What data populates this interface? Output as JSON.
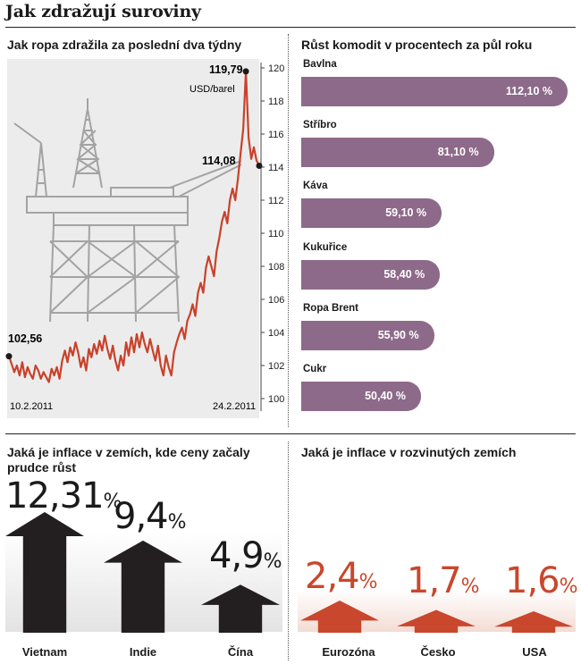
{
  "main_title": "Jak zdražují suroviny",
  "colors": {
    "bar_purple": "#8d6a89",
    "price_line": "#c8422b",
    "arrow_dark": "#231f20",
    "arrow_orange": "#c9472c",
    "chart_bg": "#ececec"
  },
  "oil_chart": {
    "title": "Jak ropa zdražila za poslední dva týdny",
    "unit": "USD/barel",
    "start_label": "102,56",
    "peak_label": "119,79",
    "end_label": "114,08",
    "x_start": "10.2.2011",
    "x_end": "24.2.2011",
    "y_ticks": [
      "100",
      "102",
      "104",
      "106",
      "108",
      "110",
      "112",
      "114",
      "116",
      "118",
      "120"
    ],
    "background_icon": "oil-platform-icon"
  },
  "commodities": {
    "title": "Růst komodit v procentech za půl roku",
    "items": [
      {
        "name": "Bavlna",
        "value_label": "112,10 %"
      },
      {
        "name": "Stříbro",
        "value_label": "81,10 %"
      },
      {
        "name": "Káva",
        "value_label": "59,10 %"
      },
      {
        "name": "Kukuřice",
        "value_label": "58,40 %"
      },
      {
        "name": "Ropa Brent",
        "value_label": "55,90 %"
      },
      {
        "name": "Cukr",
        "value_label": "50,40 %"
      }
    ]
  },
  "inflation_emerging": {
    "title": "Jaká je inflace v zemích, kde ceny začaly prudce růst",
    "items": [
      {
        "country": "Vietnam",
        "number": "12,31",
        "pct": "%"
      },
      {
        "country": "Indie",
        "number": "9,4",
        "pct": "%"
      },
      {
        "country": "Čína",
        "number": "4,9",
        "pct": "%"
      }
    ]
  },
  "inflation_developed": {
    "title": "Jaká je inflace v rozvinutých zemích",
    "items": [
      {
        "country": "Eurozóna",
        "number": "2,4",
        "pct": "%"
      },
      {
        "country": "Česko",
        "number": "1,7",
        "pct": "%"
      },
      {
        "country": "USA",
        "number": "1,6",
        "pct": "%"
      }
    ]
  },
  "chart_data": [
    {
      "type": "line",
      "title": "Jak ropa zdražila za poslední dva týdny",
      "ylabel": "USD/barel",
      "x_range": [
        "10.2.2011",
        "24.2.2011"
      ],
      "ylim": [
        100,
        120
      ],
      "grid": false,
      "annotations": [
        {
          "label": "102,56",
          "value": 102.56,
          "at": "start"
        },
        {
          "label": "119,79",
          "value": 119.79,
          "at": "peak"
        },
        {
          "label": "114,08",
          "value": 114.08,
          "at": "end"
        }
      ],
      "series": [
        {
          "values": [
            102.56,
            102.1,
            101.6,
            102.0,
            101.4,
            102.2,
            101.3,
            101.9,
            101.5,
            101.2,
            102.0,
            101.7,
            101.2,
            101.6,
            101.3,
            101.0,
            101.8,
            101.4,
            101.9,
            101.2,
            102.3,
            102.9,
            102.2,
            103.1,
            102.6,
            103.4,
            102.8,
            101.9,
            102.5,
            101.7,
            103.0,
            102.5,
            103.3,
            102.7,
            103.5,
            102.9,
            103.8,
            103.0,
            102.4,
            103.2,
            102.3,
            101.7,
            102.6,
            102.0,
            103.4,
            102.6,
            103.7,
            102.8,
            103.9,
            103.1,
            104.0,
            103.3,
            102.8,
            103.6,
            102.9,
            102.3,
            103.2,
            102.0,
            101.4,
            102.6,
            101.9,
            101.4,
            102.8,
            103.4,
            103.9,
            104.3,
            103.6,
            104.7,
            105.1,
            105.7,
            105.0,
            106.4,
            107.0,
            106.4,
            107.9,
            108.6,
            108.0,
            107.4,
            108.9,
            109.7,
            110.7,
            111.3,
            110.6,
            112.0,
            112.7,
            112.0,
            113.3,
            114.8,
            116.3,
            119.79,
            115.8,
            114.5,
            115.2,
            114.4,
            114.08
          ]
        }
      ]
    },
    {
      "type": "bar",
      "title": "Růst komodit v procentech za půl roku",
      "orientation": "horizontal",
      "unit": "%",
      "categories": [
        "Bavlna",
        "Stříbro",
        "Káva",
        "Kukuřice",
        "Ropa Brent",
        "Cukr"
      ],
      "values": [
        112.1,
        81.1,
        59.1,
        58.4,
        55.9,
        50.4
      ],
      "data_labels": [
        "112,10 %",
        "81,10 %",
        "59,10 %",
        "58,40 %",
        "55,90 %",
        "50,40 %"
      ]
    },
    {
      "type": "bar",
      "title": "Jaká je inflace v zemích, kde ceny začaly prudce růst",
      "unit": "%",
      "categories": [
        "Vietnam",
        "Indie",
        "Čína"
      ],
      "values": [
        12.31,
        9.4,
        4.9
      ],
      "data_labels": [
        "12,31 %",
        "9,4 %",
        "4,9 %"
      ]
    },
    {
      "type": "bar",
      "title": "Jaká je inflace v rozvinutých zemích",
      "unit": "%",
      "categories": [
        "Eurozóna",
        "Česko",
        "USA"
      ],
      "values": [
        2.4,
        1.7,
        1.6
      ],
      "data_labels": [
        "2,4 %",
        "1,7 %",
        "1,6 %"
      ]
    }
  ]
}
